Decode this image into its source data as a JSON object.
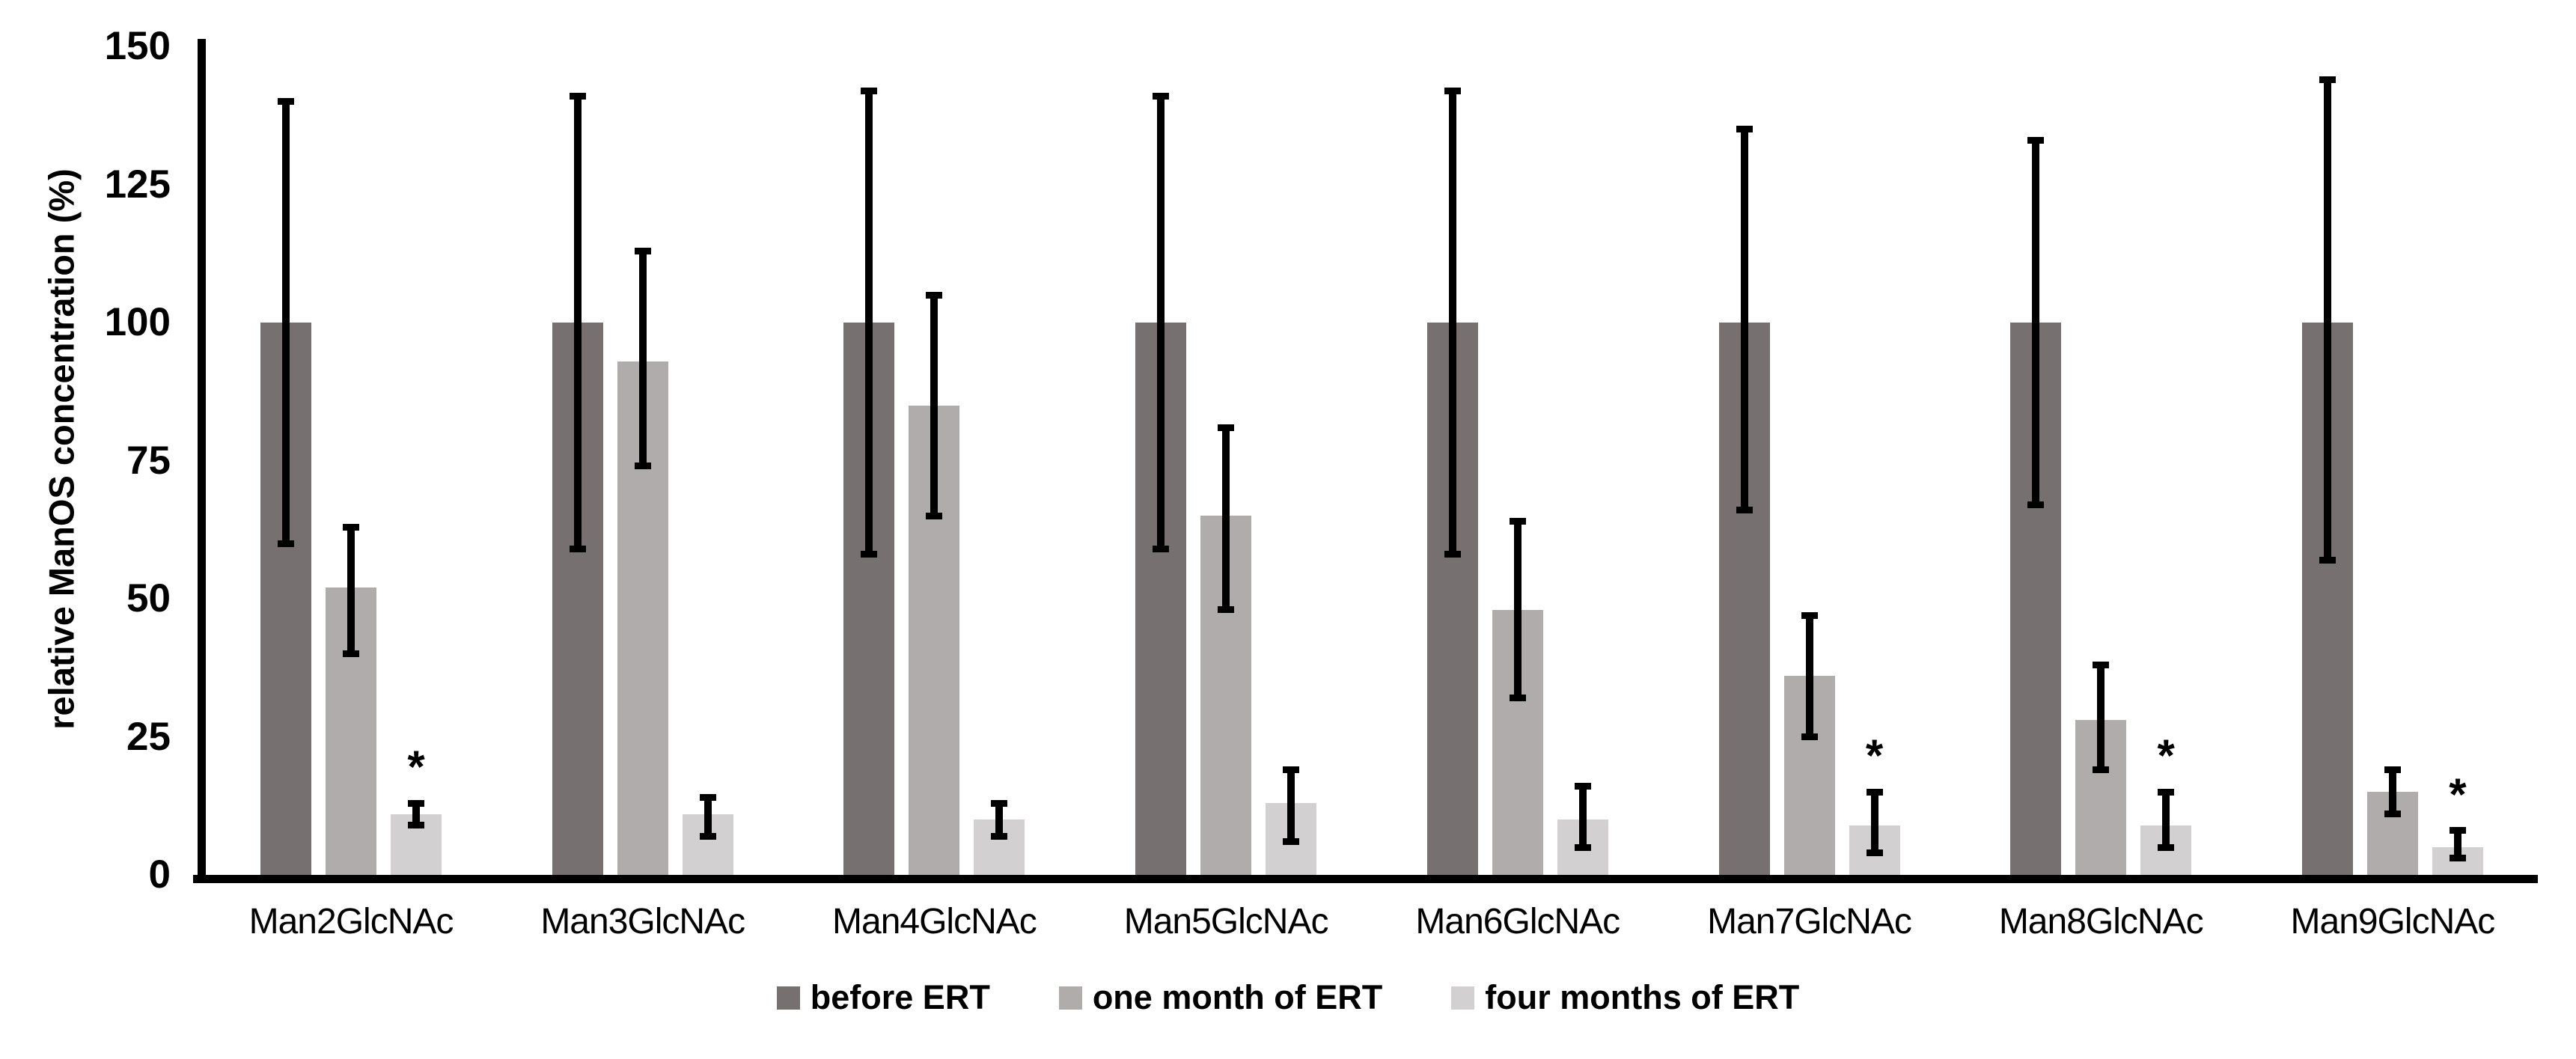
{
  "chart_data": {
    "type": "bar",
    "title": "",
    "ylabel": "relative ManOS concentration (%)",
    "xlabel": "",
    "ylim": [
      0,
      150
    ],
    "yticks": [
      0,
      25,
      50,
      75,
      100,
      125,
      150
    ],
    "grid": false,
    "legend_position": "bottom",
    "axis_color": "#000000",
    "error_bar_color": "#000000",
    "significance_marker": "*",
    "categories": [
      "Man2GlcNAc",
      "Man3GlcNAc",
      "Man4GlcNAc",
      "Man5GlcNAc",
      "Man6GlcNAc",
      "Man7GlcNAc",
      "Man8GlcNAc",
      "Man9GlcNAc"
    ],
    "series": [
      {
        "name": "before ERT",
        "color": "#767070",
        "values": [
          100,
          100,
          100,
          100,
          100,
          100,
          100,
          100
        ],
        "err_low": [
          60,
          59,
          58,
          59,
          58,
          66,
          67,
          57
        ],
        "err_high": [
          140,
          141,
          142,
          141,
          142,
          135,
          133,
          144
        ],
        "significant": [
          false,
          false,
          false,
          false,
          false,
          false,
          false,
          false
        ]
      },
      {
        "name": "one month of ERT",
        "color": "#b1acac",
        "values": [
          52,
          93,
          85,
          65,
          48,
          36,
          28,
          15
        ],
        "err_low": [
          40,
          74,
          65,
          48,
          32,
          25,
          19,
          11
        ],
        "err_high": [
          63,
          113,
          105,
          81,
          64,
          47,
          38,
          19
        ],
        "significant": [
          false,
          false,
          false,
          false,
          false,
          false,
          false,
          false
        ]
      },
      {
        "name": "four months of ERT",
        "color": "#d2d0d0",
        "values": [
          11,
          11,
          10,
          13,
          10,
          9,
          9,
          5
        ],
        "err_low": [
          9,
          7,
          7,
          6,
          5,
          4,
          5,
          3
        ],
        "err_high": [
          13,
          14,
          13,
          19,
          16,
          15,
          15,
          8
        ],
        "significant": [
          true,
          false,
          false,
          false,
          false,
          true,
          true,
          true
        ]
      }
    ]
  }
}
